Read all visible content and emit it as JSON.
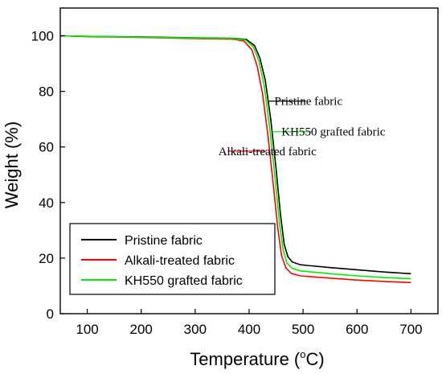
{
  "chart_data": {
    "type": "line",
    "xlabel_main": "Temperature (",
    "xlabel_sup": "o",
    "xlabel_unit": "C)",
    "ylabel": "Weight (%)",
    "xlim": [
      50,
      750
    ],
    "ylim": [
      0,
      110
    ],
    "x_ticks": [
      100,
      200,
      300,
      400,
      500,
      600,
      700
    ],
    "y_ticks": [
      0,
      20,
      40,
      60,
      80,
      100
    ],
    "grid": false,
    "legend_position": "bottom-left",
    "series": [
      {
        "name": "Pristine fabric",
        "color": "#000000",
        "points": [
          [
            50,
            100
          ],
          [
            100,
            99.8
          ],
          [
            200,
            99.6
          ],
          [
            300,
            99.3
          ],
          [
            370,
            99.1
          ],
          [
            395,
            98.7
          ],
          [
            410,
            96.5
          ],
          [
            420,
            92
          ],
          [
            430,
            84
          ],
          [
            440,
            70
          ],
          [
            450,
            52
          ],
          [
            458,
            36
          ],
          [
            465,
            25
          ],
          [
            472,
            20.5
          ],
          [
            480,
            18.6
          ],
          [
            495,
            17.6
          ],
          [
            550,
            16.6
          ],
          [
            600,
            15.8
          ],
          [
            650,
            15
          ],
          [
            700,
            14.4
          ]
        ]
      },
      {
        "name": "Alkali-treated fabric",
        "color": "#ff0000",
        "points": [
          [
            50,
            100
          ],
          [
            100,
            99.7
          ],
          [
            200,
            99.4
          ],
          [
            300,
            99
          ],
          [
            370,
            98.8
          ],
          [
            390,
            98.2
          ],
          [
            405,
            95
          ],
          [
            415,
            89
          ],
          [
            425,
            79
          ],
          [
            435,
            64
          ],
          [
            445,
            46
          ],
          [
            453,
            31
          ],
          [
            460,
            21
          ],
          [
            468,
            16.5
          ],
          [
            478,
            14.5
          ],
          [
            495,
            13.6
          ],
          [
            550,
            12.8
          ],
          [
            600,
            12.1
          ],
          [
            650,
            11.6
          ],
          [
            700,
            11.2
          ]
        ]
      },
      {
        "name": "KH550 grafted fabric",
        "color": "#00ee00",
        "points": [
          [
            50,
            100
          ],
          [
            100,
            99.8
          ],
          [
            200,
            99.5
          ],
          [
            300,
            99.2
          ],
          [
            370,
            99
          ],
          [
            393,
            98.5
          ],
          [
            408,
            96
          ],
          [
            418,
            91
          ],
          [
            428,
            82
          ],
          [
            438,
            67
          ],
          [
            448,
            49
          ],
          [
            456,
            33
          ],
          [
            463,
            23
          ],
          [
            470,
            18.2
          ],
          [
            480,
            16.3
          ],
          [
            495,
            15.4
          ],
          [
            550,
            14.4
          ],
          [
            600,
            13.6
          ],
          [
            650,
            13
          ],
          [
            700,
            12.6
          ]
        ]
      }
    ],
    "annotations": [
      {
        "text": "Pristine fabric",
        "x": 447,
        "y": 76.5,
        "line_from": 437,
        "line_to": 505,
        "color": "#000000"
      },
      {
        "text": "KH550 grafted fabric",
        "x": 460,
        "y": 65.5,
        "line_from": 443,
        "line_to": 517,
        "color": "#00ee00"
      },
      {
        "text": "Alkali-treated fabric",
        "x": 343,
        "y": 58.5,
        "line_from": 360,
        "line_to": 432,
        "color": "#ff0000"
      }
    ]
  }
}
